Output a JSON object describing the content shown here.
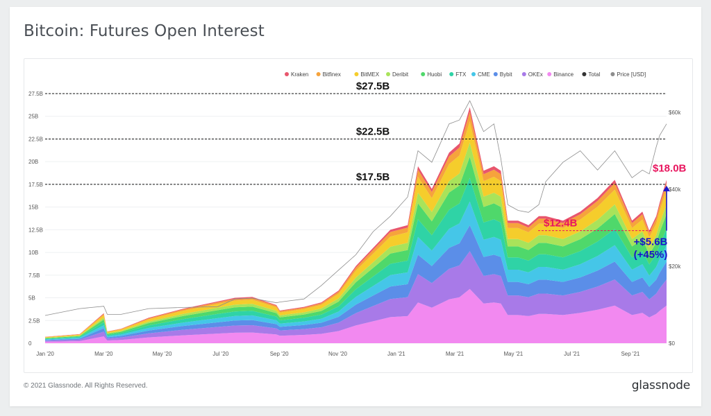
{
  "title": "Bitcoin: Futures Open Interest",
  "footer": {
    "copyright": "© 2021 Glassnode. All Rights Reserved.",
    "logo": "glassnode"
  },
  "chart_data": {
    "type": "area",
    "stacked": true,
    "title": "Bitcoin: Futures Open Interest",
    "x_ticks": [
      "Jan '20",
      "Mar '20",
      "May '20",
      "Jul '20",
      "Sep '20",
      "Nov '20",
      "Jan '21",
      "Mar '21",
      "May '21",
      "Jul '21",
      "Sep '21"
    ],
    "x": [
      2020.0,
      2020.1,
      2020.17,
      2020.18,
      2020.22,
      2020.3,
      2020.4,
      2020.5,
      2020.55,
      2020.6,
      2020.67,
      2020.68,
      2020.75,
      2020.8,
      2020.85,
      2020.9,
      2020.95,
      2021.0,
      2021.05,
      2021.08,
      2021.12,
      2021.17,
      2021.2,
      2021.23,
      2021.27,
      2021.3,
      2021.32,
      2021.34,
      2021.37,
      2021.4,
      2021.43,
      2021.45,
      2021.5,
      2021.55,
      2021.6,
      2021.65,
      2021.7,
      2021.73,
      2021.75,
      2021.77,
      2021.78,
      2021.8
    ],
    "total_oi_usd_billions": [
      0.7,
      1.0,
      3.3,
      1.3,
      1.6,
      2.8,
      3.8,
      4.6,
      5.0,
      5.1,
      4.2,
      3.6,
      4.0,
      4.5,
      5.8,
      8.5,
      10.5,
      12.5,
      13.0,
      19.5,
      17.0,
      21.0,
      22.0,
      26.0,
      19.0,
      19.5,
      19.0,
      13.5,
      13.5,
      13.0,
      14.0,
      14.0,
      13.5,
      14.5,
      16.0,
      18.0,
      13.5,
      14.5,
      12.4,
      14.0,
      15.5,
      18.0
    ],
    "price_usd": [
      7200,
      9000,
      9600,
      7500,
      7500,
      9000,
      9300,
      9500,
      11500,
      11700,
      10500,
      10700,
      11500,
      15000,
      19000,
      23000,
      29000,
      33000,
      38000,
      50000,
      47000,
      57000,
      58000,
      63000,
      55000,
      57000,
      48000,
      36000,
      34500,
      34000,
      36000,
      42000,
      47000,
      50000,
      45000,
      50000,
      43000,
      45000,
      44000,
      51000,
      54000,
      57000
    ],
    "series": [
      {
        "name": "Kraken",
        "color": "#e8566d",
        "share": 0.02
      },
      {
        "name": "Bitfinex",
        "color": "#f6a33c",
        "share": 0.04
      },
      {
        "name": "BitMEX",
        "color": "#f5cd2c",
        "share": 0.09
      },
      {
        "name": "Deribit",
        "color": "#a9e35a",
        "share": 0.06
      },
      {
        "name": "Huobi",
        "color": "#4fd86b",
        "share": 0.09
      },
      {
        "name": "FTX",
        "color": "#2fd3a6",
        "share": 0.1
      },
      {
        "name": "CME",
        "color": "#45c6e8",
        "share": 0.1
      },
      {
        "name": "Bybit",
        "color": "#5b8ee8",
        "share": 0.11
      },
      {
        "name": "OKEx",
        "color": "#a87ae8",
        "share": 0.16
      },
      {
        "name": "Binance",
        "color": "#f289f0",
        "share": 0.23
      },
      {
        "name": "Total",
        "color": "#333333"
      },
      {
        "name": "Price [USD]",
        "color": "#8d8d8d"
      }
    ],
    "y_left": {
      "ticks": [
        "0",
        "2.5B",
        "5B",
        "7.5B",
        "10B",
        "12.5B",
        "15B",
        "17.5B",
        "20B",
        "22.5B",
        "25B",
        "27.5B"
      ],
      "ylim": [
        0,
        27.5
      ]
    },
    "y_right": {
      "ticks": [
        "$0",
        "$20k",
        "$40k",
        "$60k"
      ],
      "ylim": [
        0,
        60000
      ]
    },
    "annotations": {
      "level_27": "$27.5B",
      "level_22": "$22.5B",
      "level_17": "$17.5B",
      "low": "$12.4B",
      "high": "$18.0B",
      "change_line1": "+$5.6B",
      "change_line2": "(+45%)"
    },
    "legend_position": "top-right",
    "grid": true
  }
}
